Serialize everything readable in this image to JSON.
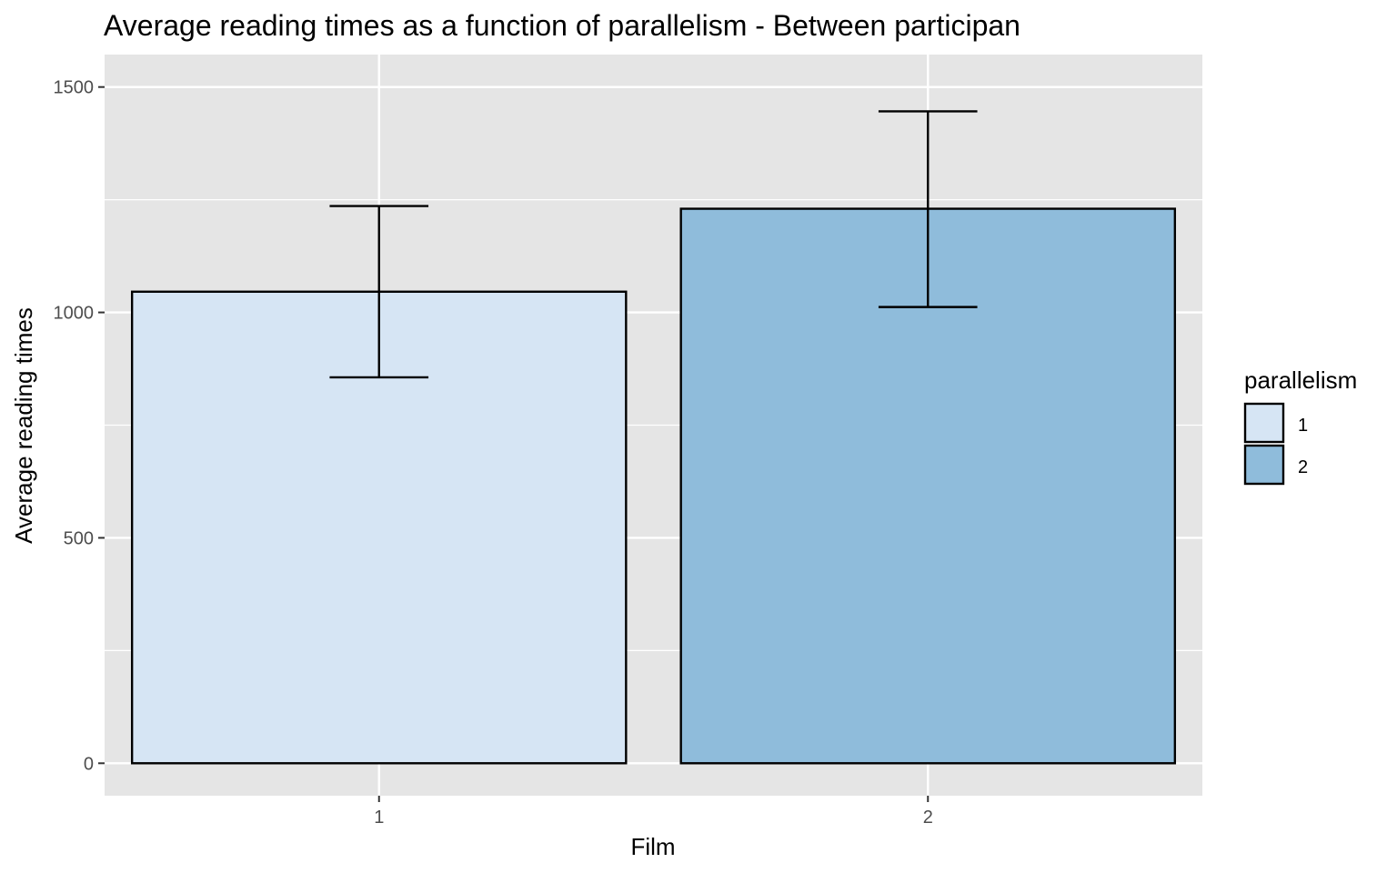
{
  "chart_data": {
    "type": "bar",
    "title": "Average reading times as a function of parallelism - Between participan",
    "xlabel": "Film",
    "ylabel": "Average reading times",
    "categories": [
      "1",
      "2"
    ],
    "series": [
      {
        "name": "1",
        "category": "1",
        "value": 1046,
        "error_low": 856,
        "error_high": 1236,
        "color": "#d6e5f4"
      },
      {
        "name": "2",
        "category": "2",
        "value": 1230,
        "error_low": 1012,
        "error_high": 1446,
        "color": "#8fbcdb"
      }
    ],
    "ylim": [
      -72,
      1572
    ],
    "yticks": [
      0,
      500,
      1000,
      1500
    ],
    "grid": true,
    "legend": {
      "title": "parallelism",
      "position": "right",
      "entries": [
        "1",
        "2"
      ]
    },
    "panel_color": "#e5e5e5",
    "grid_color": "#ffffff"
  }
}
